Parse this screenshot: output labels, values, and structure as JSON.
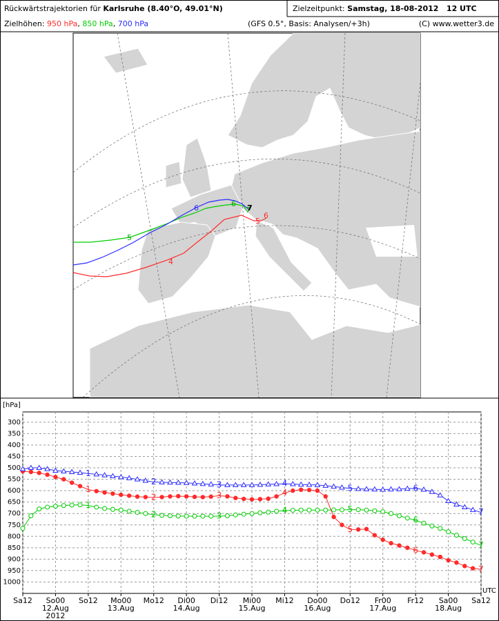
{
  "header": {
    "title_prefix": "Rückwärtstrajektorien für",
    "title_place": "Karlsruhe (8.40°O, 49.01°N)",
    "target_label": "Zielzeitpunkt:",
    "target_time": "Samstag, 18-08-2012   12 UTC",
    "heights_label": "Zielhöhen:",
    "source": "(GFS 0.5°, Basis: Analysen/+3h)",
    "copyright": "(C) www.wetter3.de"
  },
  "map": {
    "trajectories": [
      {
        "labels": [
          4,
          5,
          6
        ]
      },
      {
        "labels": [
          5,
          6,
          7
        ]
      },
      {
        "labels": [
          6,
          7
        ]
      }
    ]
  },
  "chart_data": {
    "type": "line",
    "y_label": "[hPa]",
    "x_label": "UTC",
    "y_inverted": true,
    "grid": true,
    "x": [
      0,
      3,
      6,
      9,
      12,
      15,
      18,
      21,
      24,
      27,
      30,
      33,
      36,
      39,
      42,
      45,
      48,
      51,
      54,
      57,
      60,
      63,
      66,
      69,
      72,
      75,
      78,
      81,
      84,
      87,
      90,
      93,
      96,
      99,
      102,
      105,
      108,
      111,
      114,
      117,
      120,
      123,
      126,
      129,
      132,
      135,
      138,
      141,
      144,
      147,
      150,
      153,
      156,
      159,
      162,
      165,
      168
    ],
    "xlim": [
      0,
      168
    ],
    "xticks": [
      {
        "value": 0,
        "label": "Sa12"
      },
      {
        "value": 12,
        "label": "So00"
      },
      {
        "value": 24,
        "label": "So12"
      },
      {
        "value": 36,
        "label": "Mo00"
      },
      {
        "value": 48,
        "label": "Mo12"
      },
      {
        "value": 60,
        "label": "Di00"
      },
      {
        "value": 72,
        "label": "Di12"
      },
      {
        "value": 84,
        "label": "Mi00"
      },
      {
        "value": 96,
        "label": "Mi12"
      },
      {
        "value": 108,
        "label": "Do00"
      },
      {
        "value": 120,
        "label": "Do12"
      },
      {
        "value": 132,
        "label": "Fr00"
      },
      {
        "value": 144,
        "label": "Fr12"
      },
      {
        "value": 156,
        "label": "Sa00"
      },
      {
        "value": 168,
        "label": "Sa12"
      }
    ],
    "date_labels": [
      "12.Aug",
      "13.Aug",
      "14.Aug",
      "15.Aug",
      "16.Aug",
      "17.Aug",
      "18.Aug"
    ],
    "year_label": "2012",
    "ylim": [
      255,
      1050
    ],
    "yticks": [
      300,
      350,
      400,
      450,
      500,
      550,
      600,
      650,
      700,
      750,
      800,
      850,
      900,
      950,
      1000
    ],
    "series": [
      {
        "name": "950 hPa",
        "color": "#ff2a2a",
        "marker": "filled-circle",
        "day_labels": [
          1,
          2,
          3,
          4,
          5,
          6,
          7
        ],
        "values": [
          515,
          518,
          522,
          530,
          540,
          550,
          565,
          580,
          595,
          602,
          608,
          613,
          618,
          622,
          626,
          628,
          630,
          628,
          625,
          624,
          625,
          627,
          628,
          626,
          622,
          625,
          632,
          636,
          638,
          637,
          635,
          625,
          610,
          600,
          596,
          597,
          600,
          625,
          715,
          750,
          770,
          770,
          768,
          795,
          815,
          830,
          840,
          850,
          862,
          870,
          880,
          890,
          905,
          915,
          930,
          940,
          945
        ]
      },
      {
        "name": "850 hPa",
        "color": "#00cc00",
        "marker": "circle",
        "day_labels": [
          1,
          2,
          3,
          4,
          5,
          6,
          7
        ],
        "values": [
          765,
          710,
          680,
          672,
          668,
          665,
          663,
          662,
          665,
          672,
          678,
          682,
          685,
          690,
          695,
          700,
          705,
          708,
          710,
          711,
          712,
          712,
          712,
          712,
          712,
          710,
          706,
          703,
          700,
          697,
          694,
          690,
          687,
          686,
          685,
          685,
          685,
          685,
          684,
          684,
          683,
          683,
          685,
          688,
          692,
          700,
          710,
          720,
          730,
          742,
          755,
          765,
          780,
          795,
          810,
          825,
          840
        ]
      },
      {
        "name": "700 hPa",
        "color": "#2a2aff",
        "marker": "triangle",
        "day_labels": [
          1,
          2,
          3,
          4,
          5,
          6,
          7
        ],
        "values": [
          505,
          500,
          500,
          505,
          512,
          515,
          518,
          521,
          525,
          528,
          532,
          536,
          540,
          545,
          550,
          556,
          562,
          563,
          564,
          565,
          566,
          568,
          570,
          572,
          575,
          575,
          575,
          575,
          575,
          574,
          572,
          571,
          570,
          571,
          573,
          574,
          575,
          578,
          582,
          586,
          590,
          592,
          593,
          594,
          595,
          594,
          593,
          591,
          590,
          595,
          605,
          620,
          645,
          660,
          672,
          684,
          695
        ]
      }
    ]
  }
}
